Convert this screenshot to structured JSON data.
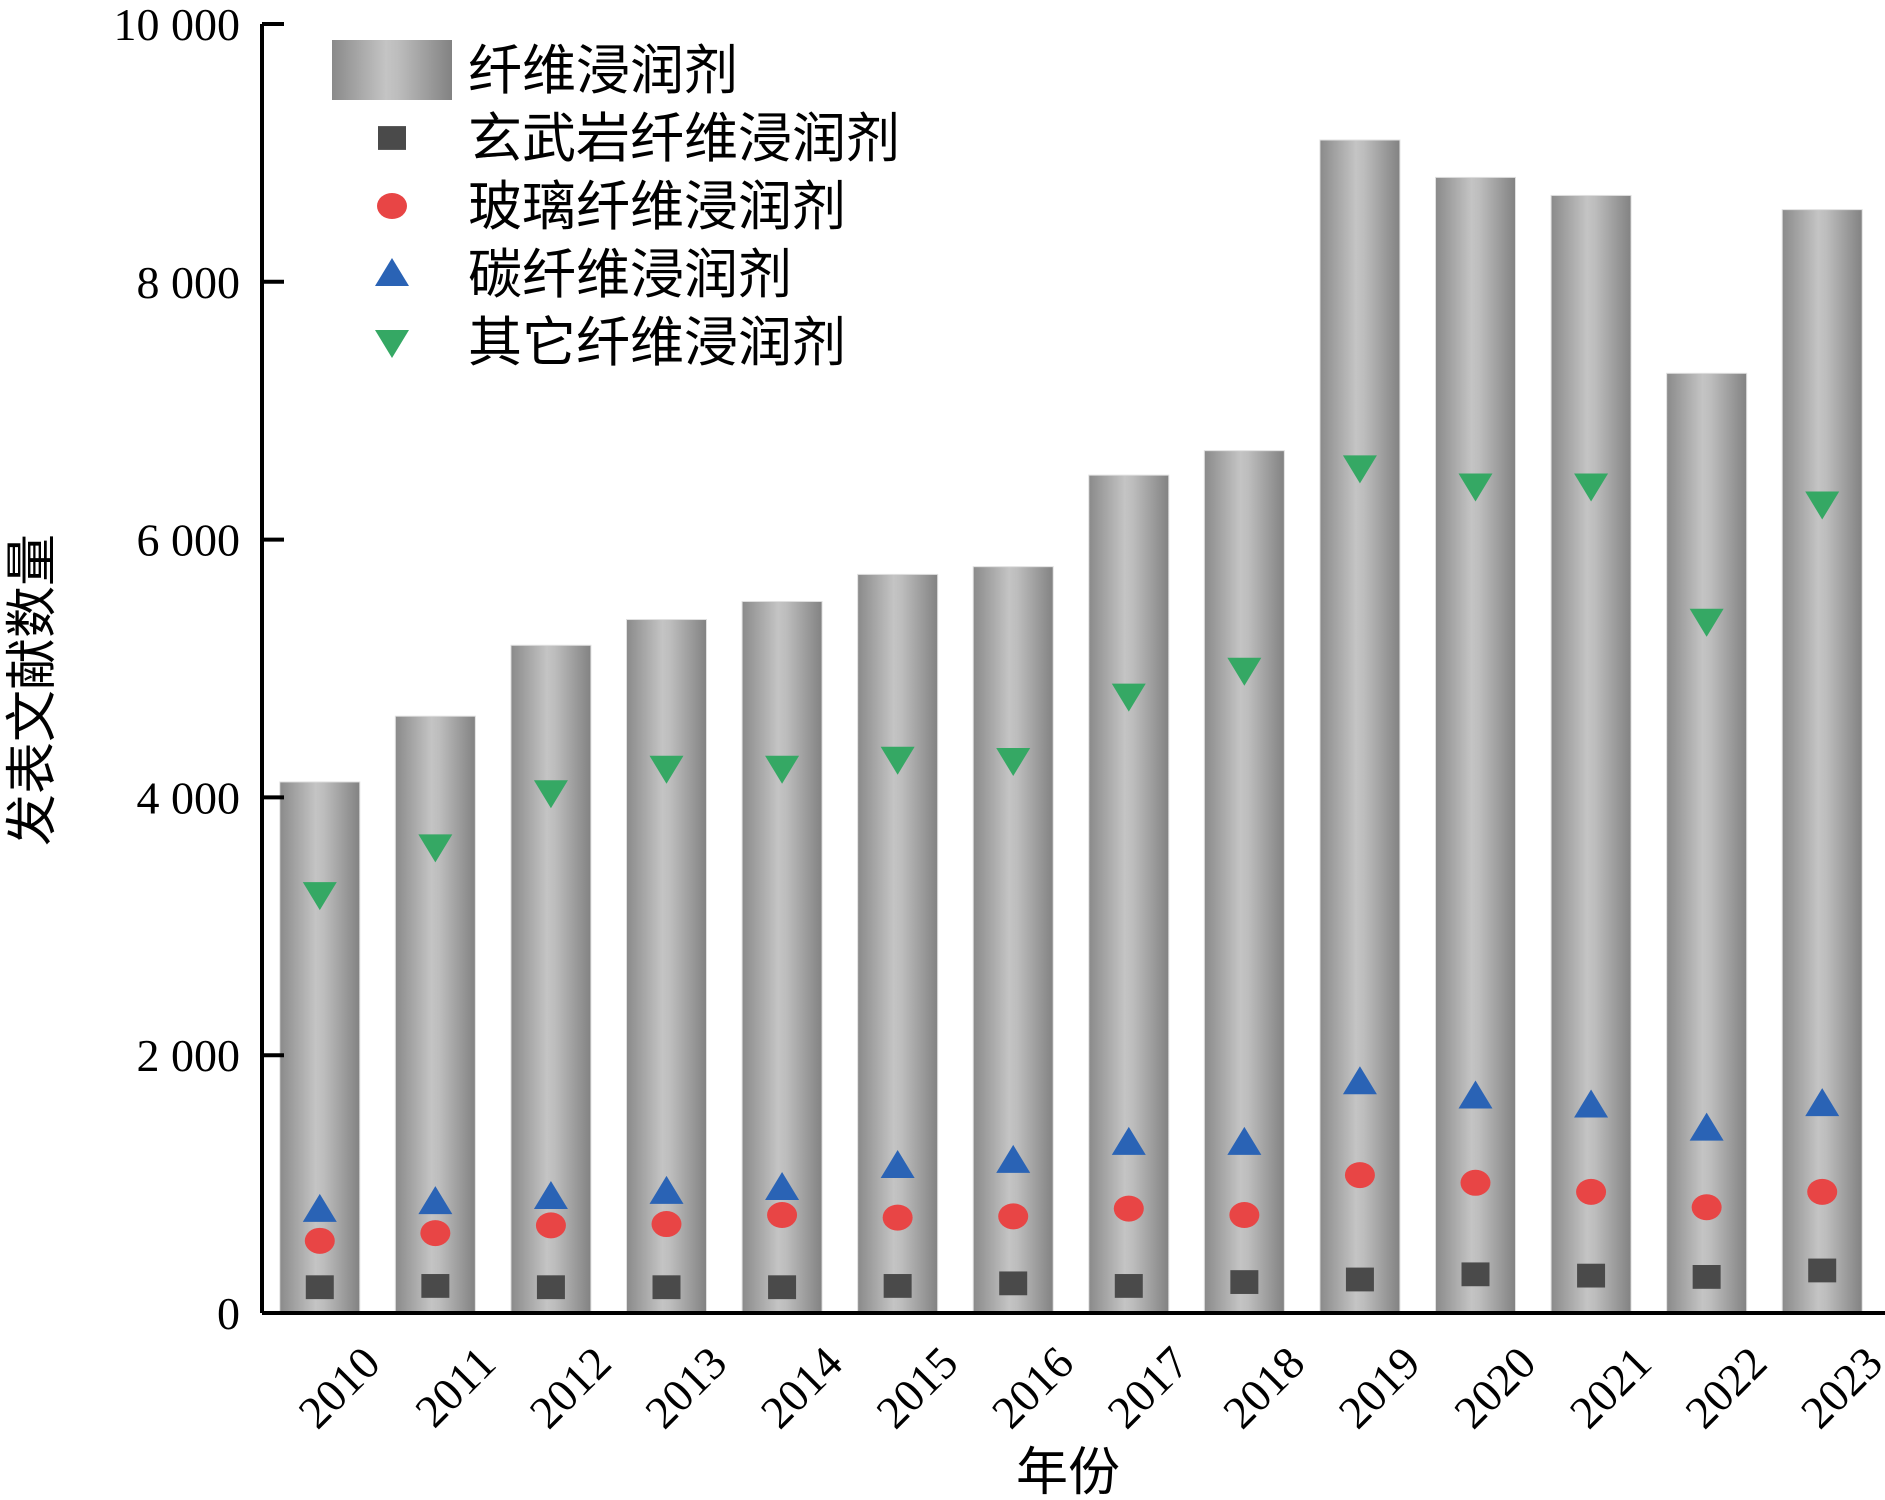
{
  "chart_data": {
    "type": "bar",
    "title": "",
    "xlabel": "年份",
    "ylabel": "发表文献数量",
    "ylim": [
      0,
      10000
    ],
    "yticks": [
      0,
      2000,
      4000,
      6000,
      8000,
      10000
    ],
    "ytick_labels": [
      "0",
      "2 000",
      "4 000",
      "6 000",
      "8 000",
      "10 000"
    ],
    "grid": false,
    "legend_position": "top-left",
    "categories": [
      "2010",
      "2011",
      "2012",
      "2013",
      "2014",
      "2015",
      "2016",
      "2017",
      "2018",
      "2019",
      "2020",
      "2021",
      "2022",
      "2023"
    ],
    "series": [
      {
        "name": "纤维浸润剂",
        "kind": "bar",
        "color": "#a8a8a8",
        "values": [
          4120,
          4630,
          5180,
          5380,
          5520,
          5730,
          5790,
          6500,
          6690,
          9100,
          8810,
          8670,
          7290,
          8560
        ]
      },
      {
        "name": "玄武岩纤维浸润剂",
        "kind": "square",
        "color": "#4a4a4a",
        "values": [
          200,
          210,
          200,
          200,
          200,
          210,
          230,
          210,
          240,
          260,
          300,
          290,
          280,
          330
        ]
      },
      {
        "name": "玻璃纤维浸润剂",
        "kind": "circle",
        "color": "#e84545",
        "values": [
          560,
          620,
          680,
          690,
          760,
          740,
          750,
          810,
          760,
          1070,
          1010,
          940,
          820,
          940
        ]
      },
      {
        "name": "碳纤维浸润剂",
        "kind": "triangle-up",
        "color": "#2a63b5",
        "values": [
          800,
          860,
          900,
          940,
          970,
          1140,
          1180,
          1320,
          1320,
          1790,
          1680,
          1610,
          1430,
          1620
        ]
      },
      {
        "name": "其它纤维浸润剂",
        "kind": "triangle-down",
        "color": "#35a864",
        "values": [
          3250,
          3620,
          4040,
          4230,
          4230,
          4300,
          4290,
          4790,
          4990,
          6560,
          6420,
          6420,
          5370,
          6280
        ]
      }
    ]
  }
}
